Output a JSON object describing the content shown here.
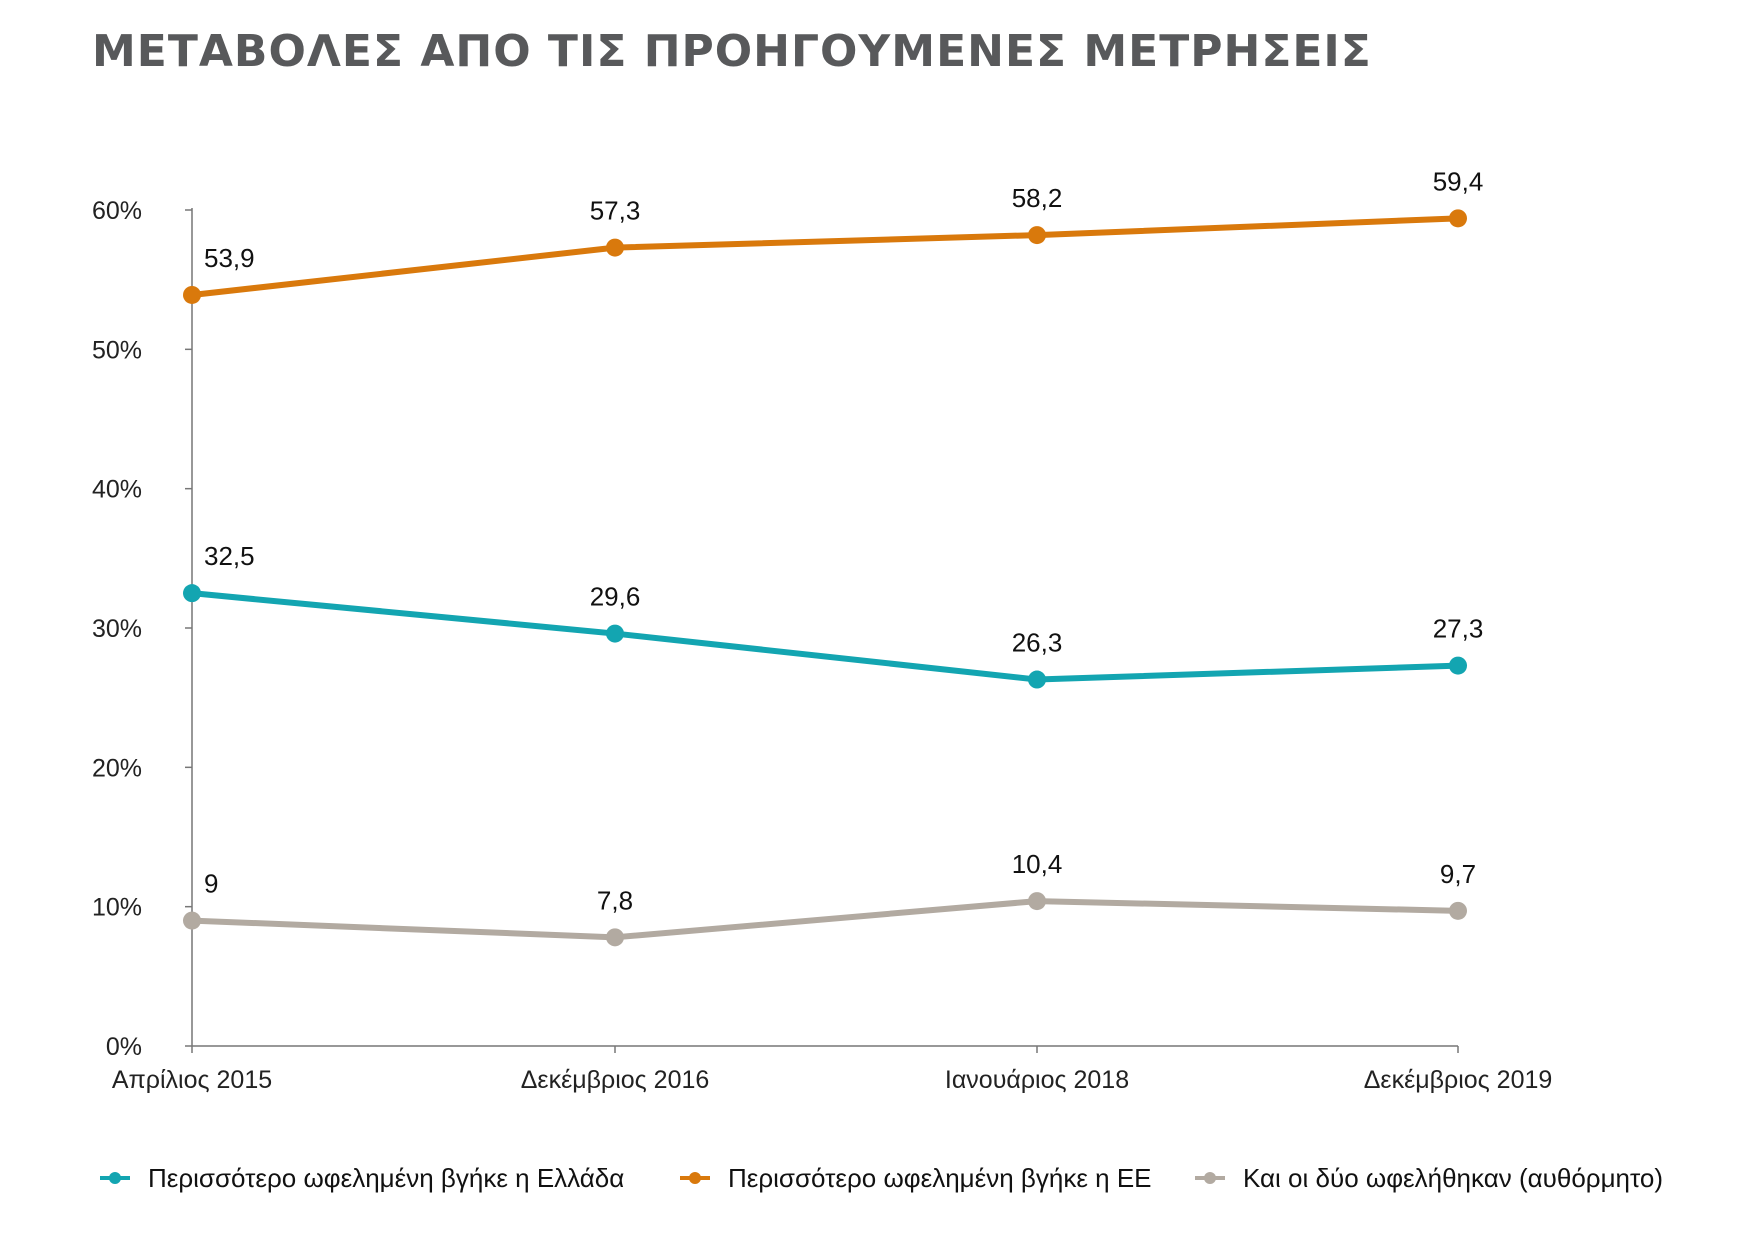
{
  "chart_data": {
    "type": "line",
    "title": "ΜΕΤΑΒΟΛΕΣ ΑΠΟ ΤΙΣ ΠΡΟΗΓΟΥΜΕΝΕΣ ΜΕΤΡΗΣΕΙΣ",
    "xlabel": "",
    "ylabel": "",
    "categories": [
      "Απρίλιος 2015",
      "Δεκέμβριος 2016",
      "Ιανουάριος 2018",
      "Δεκέμβριος 2019"
    ],
    "ylim": [
      0,
      60
    ],
    "yticks": [
      0,
      10,
      20,
      30,
      40,
      50,
      60
    ],
    "ytick_labels": [
      "0%",
      "10%",
      "20%",
      "30%",
      "40%",
      "50%",
      "60%"
    ],
    "grid": false,
    "legend_position": "bottom",
    "series": [
      {
        "name": "Περισσότερο ωφελημένη βγήκε η Ελλάδα",
        "color": "#13a5b1",
        "values": [
          32.5,
          29.6,
          26.3,
          27.3
        ],
        "labels": [
          "32,5",
          "29,6",
          "26,3",
          "27,3"
        ]
      },
      {
        "name": "Περισσότερο ωφελημένη βγήκε η ΕΕ",
        "color": "#d9790c",
        "values": [
          53.9,
          57.3,
          58.2,
          59.4
        ],
        "labels": [
          "53,9",
          "57,3",
          "58,2",
          "59,4"
        ]
      },
      {
        "name": "Και οι δύο ωφελήθηκαν (αυθόρμητο)",
        "color": "#b2aaa1",
        "values": [
          9,
          7.8,
          10.4,
          9.7
        ],
        "labels": [
          "9",
          "7,8",
          "10,4",
          "9,7"
        ]
      }
    ]
  }
}
